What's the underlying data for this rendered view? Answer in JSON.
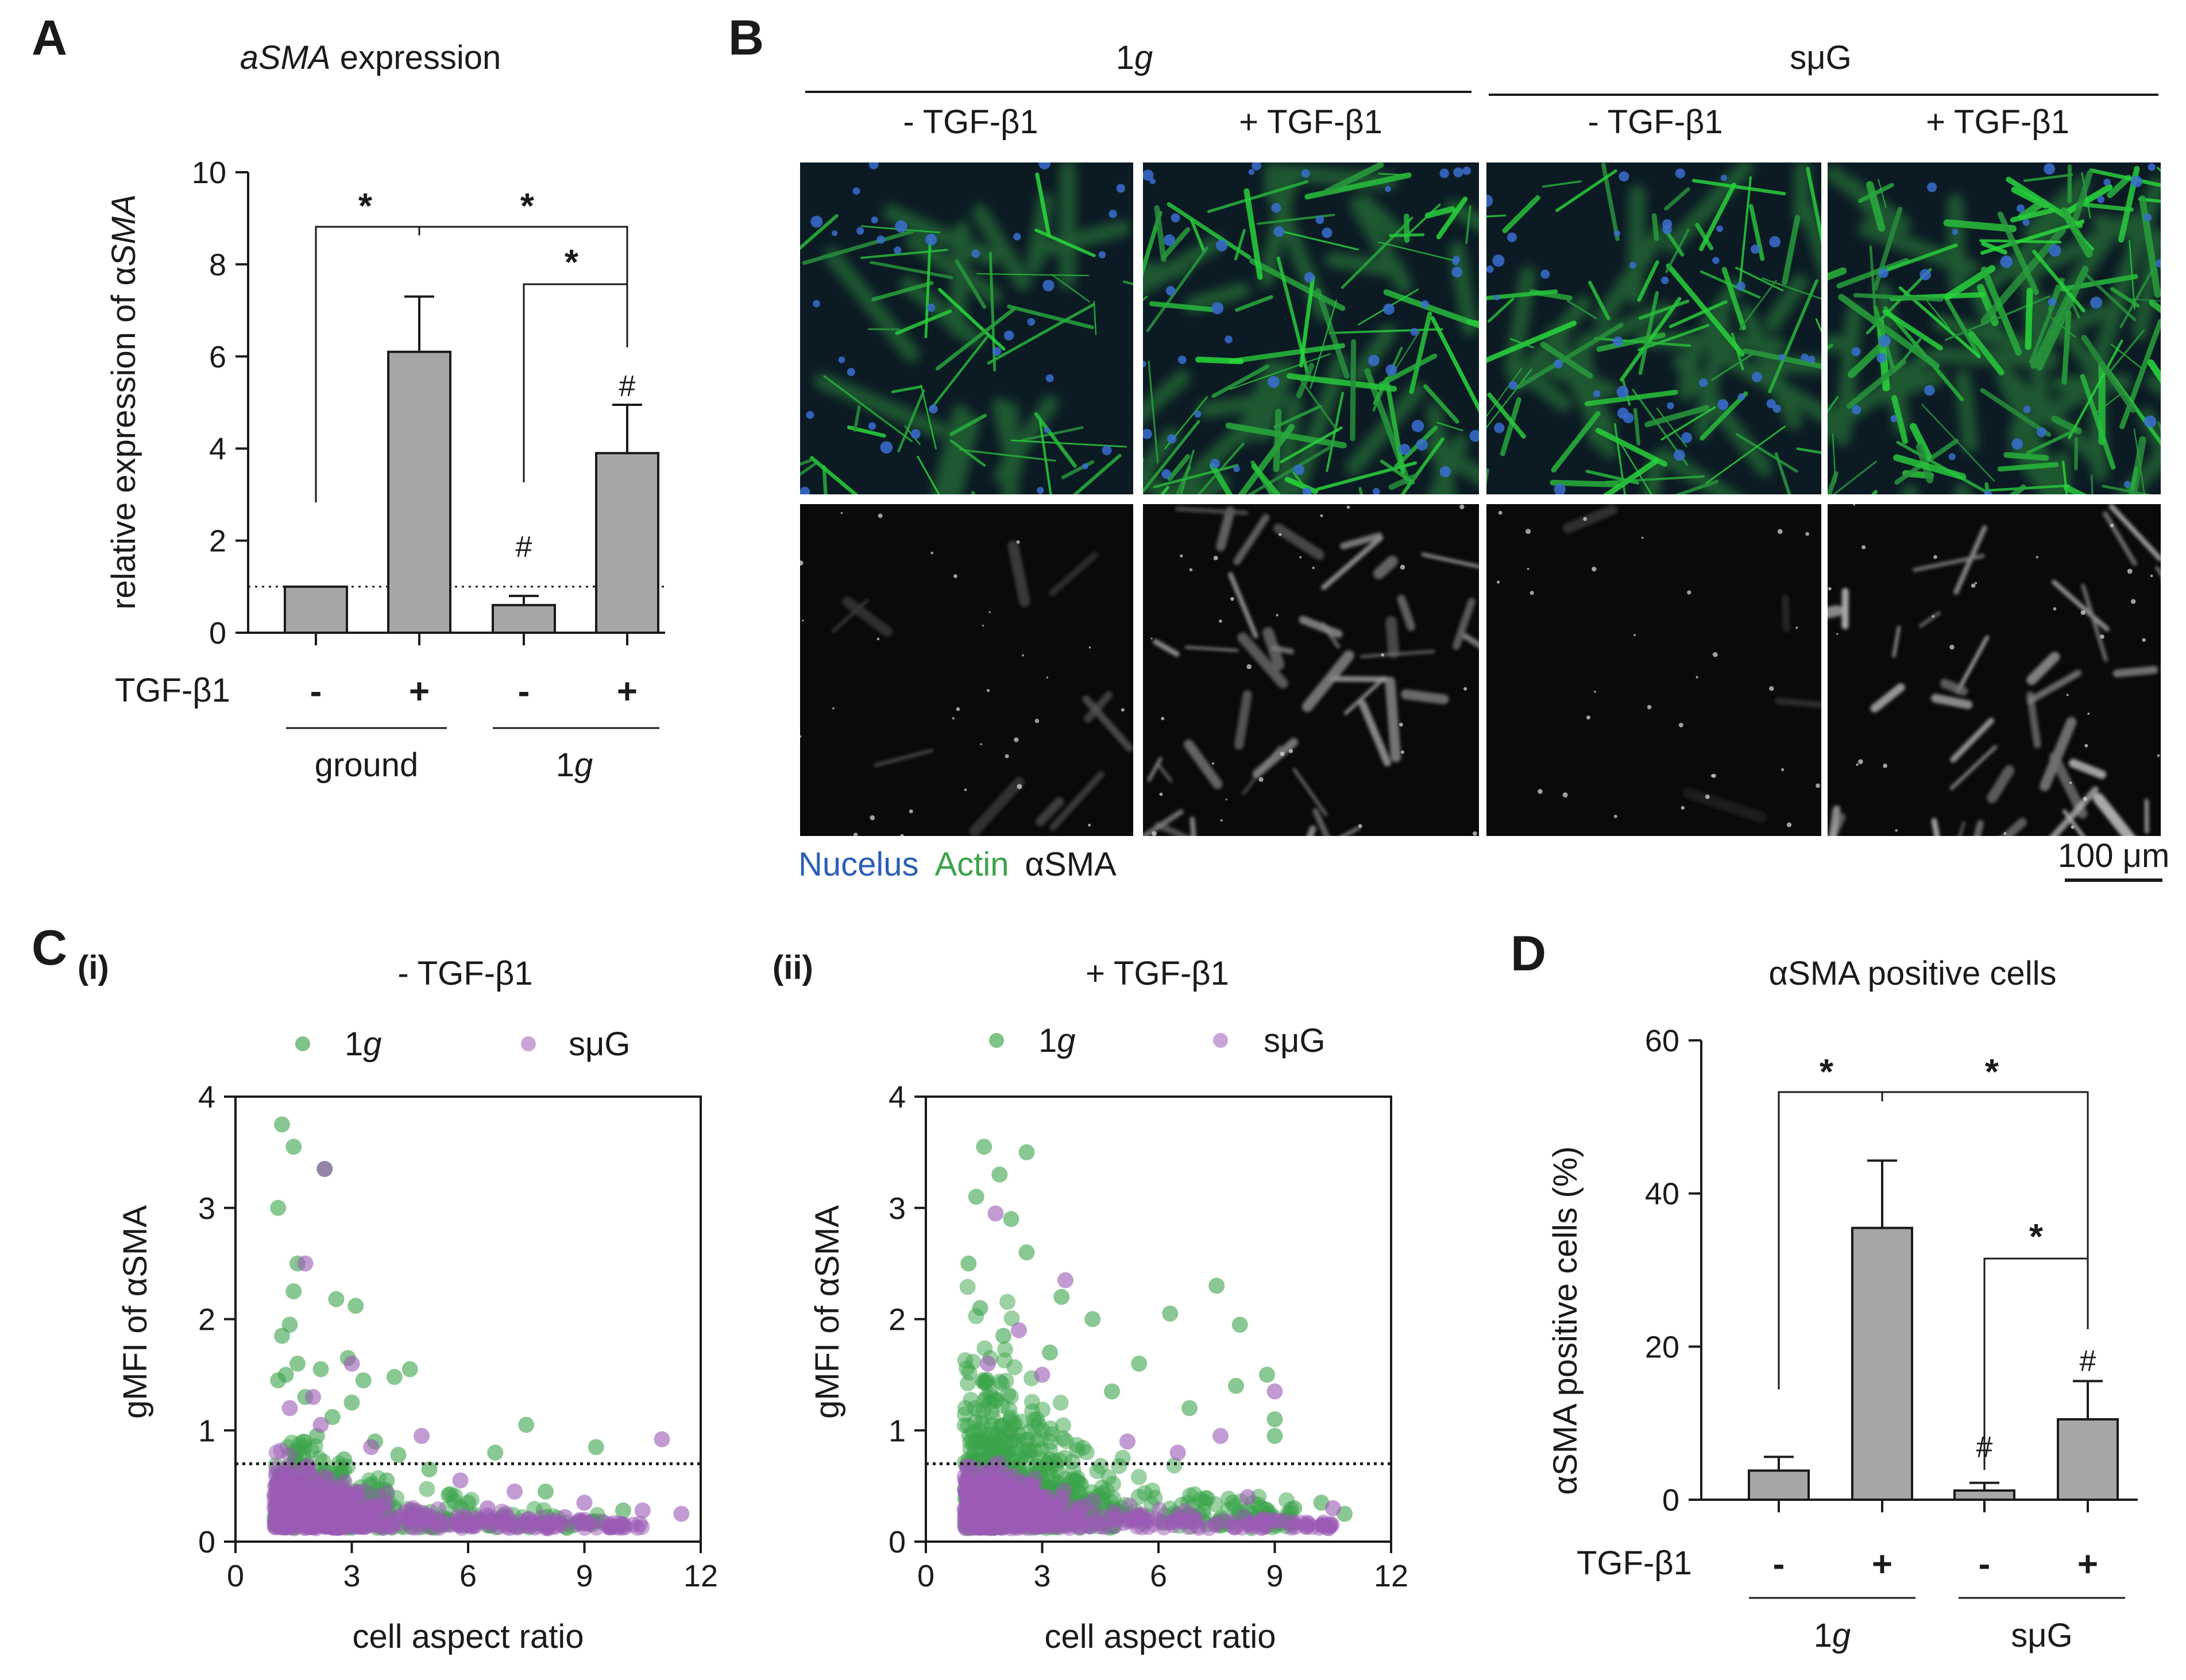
{
  "figure": {
    "panel_a_letter": "A",
    "panel_b_letter": "B",
    "panel_c_letter": "C",
    "panel_d_letter": "D",
    "colors": {
      "bar_fill": "#a6a6a6",
      "axis": "#1a1a1a",
      "green_1g": "#3aa34a",
      "purple_smug": "#9b59b6",
      "nucleus": "#2b5fb8",
      "actin": "#3aa34a",
      "asma": "#1a1a1a"
    }
  },
  "panel_a": {
    "title_italic": "aSMA",
    "title_rest": " expression",
    "ylabel_plain": "relative expression of α",
    "ylabel_italic": "SMA",
    "treatment_label": "TGF-β1",
    "treatment_signs": [
      "-",
      "+",
      "-",
      "+"
    ],
    "group_ground": "ground",
    "group_1g_num": "1",
    "group_1g_italic": "g",
    "star": "*",
    "hash": "#"
  },
  "panel_b": {
    "header_1g_num": "1",
    "header_1g_italic": "g",
    "header_smug": "sμG",
    "col_labels": [
      "- TGF-β1",
      "+ TGF-β1",
      "- TGF-β1",
      "+ TGF-β1"
    ],
    "legend_nucleus": "Nucelus",
    "legend_actin": "Actin",
    "legend_asma": "αSMA",
    "scale_bar": "100 μm"
  },
  "panel_c": {
    "sub_i": "(i)",
    "sub_ii": "(ii)",
    "title_i": "- TGF-β1",
    "title_ii": "+ TGF-β1",
    "legend_1g_num": "1",
    "legend_1g_italic": "g",
    "legend_smug": "sμG",
    "xlabel": "cell aspect ratio",
    "ylabel": "gMFI of αSMA"
  },
  "panel_d": {
    "title": "αSMA positive cells",
    "ylabel": "αSMA positive cells (%)",
    "treatment_label": "TGF-β1",
    "treatment_signs": [
      "-",
      "+",
      "-",
      "+"
    ],
    "group_1g_num": "1",
    "group_1g_italic": "g",
    "group_smug": "sμG",
    "star": "*",
    "hash": "#"
  },
  "chart_data": [
    {
      "id": "A",
      "type": "bar",
      "title": "aSMA expression",
      "ylabel": "relative expression of αSMA",
      "categories": [
        "ground -",
        "ground +",
        "1g -",
        "1g +"
      ],
      "values": [
        1.0,
        6.1,
        0.6,
        3.9
      ],
      "errors": [
        0.0,
        1.2,
        0.2,
        1.05
      ],
      "ylim": [
        0,
        10
      ],
      "yticks": [
        0,
        2,
        4,
        6,
        8,
        10
      ],
      "reference_line": 1.0,
      "groups": [
        "ground",
        "1g"
      ],
      "annotations": [
        "*",
        "*",
        "*",
        "#",
        "#"
      ]
    },
    {
      "id": "C(i)",
      "type": "scatter",
      "title": "- TGF-β1",
      "xlabel": "cell aspect ratio",
      "ylabel": "gMFI of αSMA",
      "xlim": [
        0,
        12
      ],
      "ylim": [
        0,
        4
      ],
      "xticks": [
        0,
        3,
        6,
        9,
        12
      ],
      "yticks": [
        0,
        1,
        2,
        3,
        4
      ],
      "threshold": 0.7,
      "legend_placement": "top",
      "series": [
        {
          "name": "1g",
          "points": [
            [
              1.2,
              3.75
            ],
            [
              1.5,
              3.55
            ],
            [
              1.1,
              3.0
            ],
            [
              2.3,
              3.35
            ],
            [
              1.6,
              2.5
            ],
            [
              1.5,
              2.25
            ],
            [
              2.6,
              2.18
            ],
            [
              3.1,
              2.12
            ],
            [
              1.4,
              1.95
            ],
            [
              1.2,
              1.85
            ],
            [
              1.6,
              1.6
            ],
            [
              2.9,
              1.65
            ],
            [
              2.2,
              1.55
            ],
            [
              4.5,
              1.55
            ],
            [
              1.3,
              1.5
            ],
            [
              1.1,
              1.45
            ],
            [
              3.3,
              1.45
            ],
            [
              4.1,
              1.48
            ],
            [
              1.8,
              1.3
            ],
            [
              3.0,
              1.25
            ],
            [
              2.5,
              1.12
            ],
            [
              7.5,
              1.05
            ],
            [
              9.3,
              0.85
            ],
            [
              6.7,
              0.8
            ],
            [
              2.1,
              0.95
            ],
            [
              3.6,
              0.9
            ],
            [
              5.0,
              0.65
            ],
            [
              4.2,
              0.78
            ],
            [
              1.6,
              0.82
            ],
            [
              2.8,
              0.74
            ],
            [
              8.0,
              0.45
            ],
            [
              6.0,
              0.35
            ],
            [
              10.0,
              0.28
            ],
            [
              5.5,
              0.42
            ],
            [
              3.9,
              0.55
            ]
          ]
        },
        {
          "name": "sμG",
          "points": [
            [
              2.3,
              3.35
            ],
            [
              1.8,
              2.5
            ],
            [
              3.0,
              1.6
            ],
            [
              2.0,
              1.3
            ],
            [
              4.8,
              0.95
            ],
            [
              11.0,
              0.92
            ],
            [
              2.2,
              1.05
            ],
            [
              3.5,
              0.85
            ],
            [
              1.4,
              1.2
            ],
            [
              5.8,
              0.55
            ],
            [
              7.2,
              0.45
            ],
            [
              9.0,
              0.35
            ],
            [
              11.5,
              0.25
            ],
            [
              10.5,
              0.28
            ],
            [
              8.5,
              0.22
            ],
            [
              6.5,
              0.3
            ]
          ]
        }
      ]
    },
    {
      "id": "C(ii)",
      "type": "scatter",
      "title": "+ TGF-β1",
      "xlabel": "cell aspect ratio",
      "ylabel": "gMFI of αSMA",
      "xlim": [
        0,
        12
      ],
      "ylim": [
        0,
        4
      ],
      "xticks": [
        0,
        3,
        6,
        9,
        12
      ],
      "yticks": [
        0,
        1,
        2,
        3,
        4
      ],
      "threshold": 0.7,
      "legend_placement": "top",
      "series": [
        {
          "name": "1g",
          "points": [
            [
              1.5,
              3.55
            ],
            [
              2.6,
              3.5
            ],
            [
              1.9,
              3.3
            ],
            [
              1.3,
              3.1
            ],
            [
              2.2,
              2.9
            ],
            [
              1.1,
              2.5
            ],
            [
              2.6,
              2.6
            ],
            [
              3.5,
              2.2
            ],
            [
              4.3,
              2.0
            ],
            [
              7.5,
              2.3
            ],
            [
              6.3,
              2.05
            ],
            [
              8.1,
              1.95
            ],
            [
              8.8,
              1.5
            ],
            [
              8.0,
              1.4
            ],
            [
              9.0,
              1.1
            ],
            [
              9.0,
              0.95
            ],
            [
              5.5,
              1.6
            ],
            [
              4.8,
              1.35
            ],
            [
              6.8,
              1.2
            ],
            [
              3.2,
              1.7
            ],
            [
              1.4,
              2.1
            ],
            [
              2.0,
              1.85
            ],
            [
              10.2,
              0.35
            ],
            [
              10.8,
              0.25
            ],
            [
              9.5,
              0.3
            ]
          ]
        },
        {
          "name": "sμG",
          "points": [
            [
              1.8,
              2.95
            ],
            [
              3.6,
              2.35
            ],
            [
              2.4,
              1.9
            ],
            [
              9.0,
              1.35
            ],
            [
              7.6,
              0.95
            ],
            [
              6.5,
              0.8
            ],
            [
              5.2,
              0.9
            ],
            [
              3.0,
              1.5
            ],
            [
              1.6,
              1.6
            ],
            [
              10.5,
              0.3
            ],
            [
              8.3,
              0.4
            ]
          ]
        }
      ]
    },
    {
      "id": "D",
      "type": "bar",
      "title": "αSMA positive cells",
      "ylabel": "αSMA positive cells (%)",
      "categories": [
        "1g -",
        "1g +",
        "sμG -",
        "sμG +"
      ],
      "values": [
        3.8,
        35.5,
        1.2,
        10.5
      ],
      "errors": [
        1.8,
        8.8,
        1.0,
        5.0
      ],
      "ylim": [
        0,
        60
      ],
      "yticks": [
        0,
        20,
        40,
        60
      ],
      "groups": [
        "1g",
        "sμG"
      ],
      "annotations": [
        "*",
        "*",
        "*",
        "#",
        "#"
      ]
    }
  ]
}
